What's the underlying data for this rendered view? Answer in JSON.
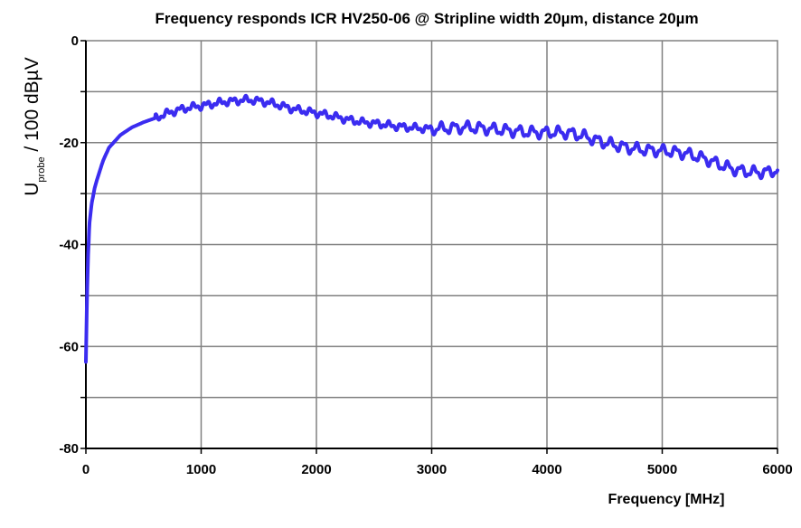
{
  "chart_data": {
    "type": "line",
    "title": "Frequency responds ICR HV250-06 @ Stripline width 20µm, distance 20µm",
    "xlabel": "Frequency [MHz]",
    "ylabel": {
      "main": "U",
      "subscript": "probe",
      "suffix": " / 100 dBµV"
    },
    "xlim": [
      0,
      6000
    ],
    "ylim": [
      -80,
      0
    ],
    "xticks": [
      "0",
      "1000",
      "2000",
      "3000",
      "4000",
      "5000",
      "6000"
    ],
    "yticks": [
      "0",
      "-20",
      "-40",
      "-60",
      "-80"
    ],
    "grid": true,
    "line_color": "#3b2cf0",
    "series": [
      {
        "x": [
          0,
          10,
          20,
          30,
          50,
          75,
          100,
          150,
          200,
          300,
          400,
          500,
          600,
          700,
          800,
          900,
          1000,
          1100,
          1200,
          1300,
          1400,
          1500,
          1600,
          1700,
          1800,
          1900,
          2000,
          2100,
          2200,
          2300,
          2400,
          2500,
          2600,
          2700,
          2800,
          2900,
          3000,
          3100,
          3200,
          3300,
          3400,
          3500,
          3600,
          3700,
          3800,
          3900,
          4000,
          4100,
          4200,
          4300,
          4400,
          4500,
          4600,
          4700,
          4800,
          4900,
          5000,
          5100,
          5200,
          5300,
          5400,
          5500,
          5600,
          5700,
          5800,
          5900,
          6000
        ],
        "y": [
          -63,
          -50,
          -42,
          -36,
          -32,
          -29,
          -27,
          -23.5,
          -21,
          -18.5,
          -17,
          -16,
          -15.2,
          -14.3,
          -13.6,
          -13.1,
          -12.8,
          -12.4,
          -12,
          -11.8,
          -11.6,
          -11.8,
          -12.2,
          -12.8,
          -13.4,
          -13.8,
          -14.2,
          -14.6,
          -15.1,
          -15.6,
          -16,
          -16.2,
          -16.5,
          -16.8,
          -17,
          -17.2,
          -17.3,
          -17.2,
          -17.1,
          -17,
          -17.1,
          -17.3,
          -17.5,
          -17.7,
          -17.9,
          -18,
          -18,
          -18,
          -18.1,
          -18.6,
          -19.3,
          -20,
          -20.5,
          -21,
          -21.3,
          -21.5,
          -21.6,
          -21.8,
          -22.1,
          -22.7,
          -23.4,
          -24.3,
          -25.1,
          -25.6,
          -25.8,
          -25.8,
          -25.4
        ]
      }
    ]
  }
}
